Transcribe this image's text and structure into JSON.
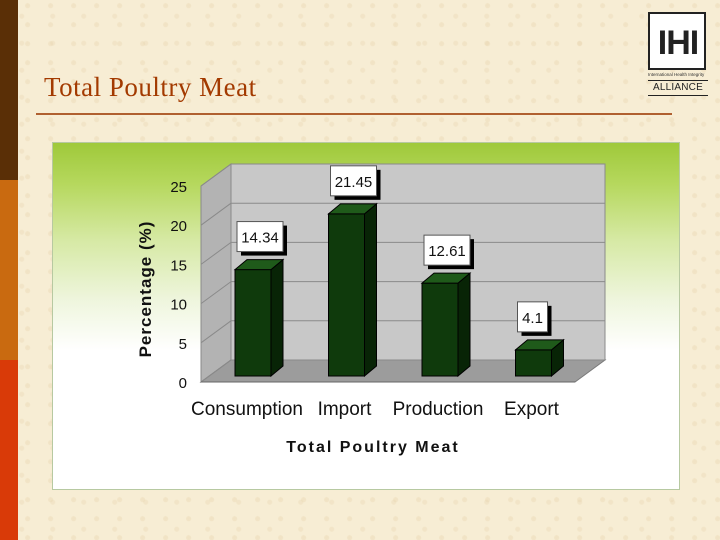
{
  "slide": {
    "title": "Total Poultry Meat"
  },
  "logo": {
    "mark": "IHI",
    "subtitle": "International Health Integrity",
    "name": "ALLIANCE"
  },
  "colors": {
    "bar": "#0f3a0c",
    "bar_side": "#082406",
    "bar_top": "#1f5a1a",
    "title": "#a33a00"
  },
  "chart_data": {
    "type": "bar",
    "categories": [
      "Consumption",
      "Import",
      "Production",
      "Export"
    ],
    "values": [
      14.34,
      21.45,
      12.61,
      4.1
    ],
    "data_labels": [
      "14.34",
      "21.45",
      "12.61",
      "4.1"
    ],
    "xlabel": "Total Poultry Meat",
    "ylabel": "Percentage (%)",
    "ylim": [
      0,
      25
    ],
    "yticks": [
      0,
      5,
      10,
      15,
      20,
      25
    ],
    "grid": true,
    "three_d": true
  }
}
